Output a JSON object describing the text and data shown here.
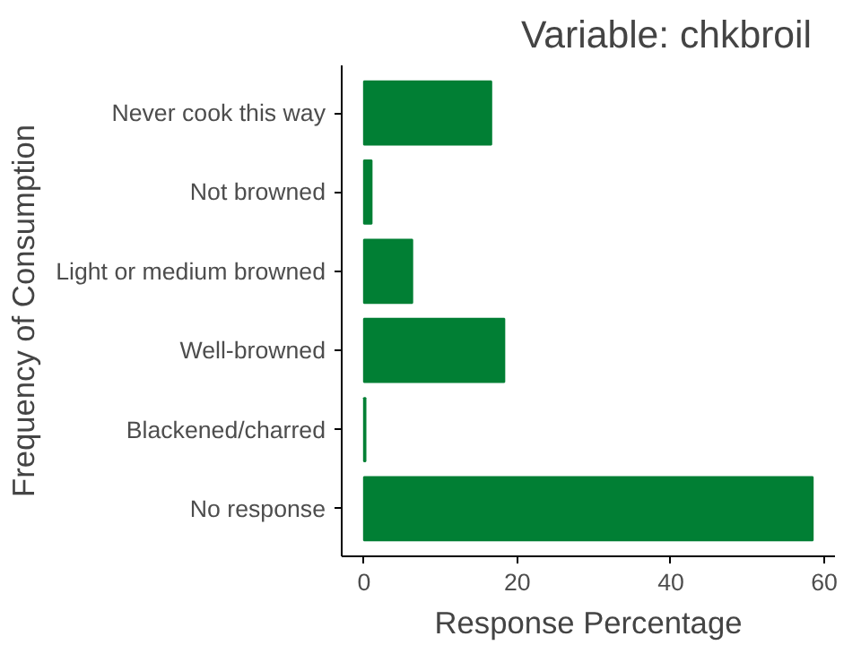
{
  "chart_data": {
    "type": "bar",
    "orientation": "horizontal",
    "title": "Variable: chkbroil",
    "xlabel": "Response Percentage",
    "ylabel": "Frequency of Consumption",
    "categories": [
      "Never cook this way",
      "Not browned",
      "Light or medium browned",
      "Well-browned",
      "Blackened/charred",
      "No response"
    ],
    "values": [
      16.6,
      1.0,
      6.3,
      18.3,
      0.2,
      58.5
    ],
    "color": "#017f34",
    "xlim": [
      -2.9,
      61.4
    ],
    "xticks": [
      0,
      20,
      40,
      60
    ],
    "grid": false
  }
}
